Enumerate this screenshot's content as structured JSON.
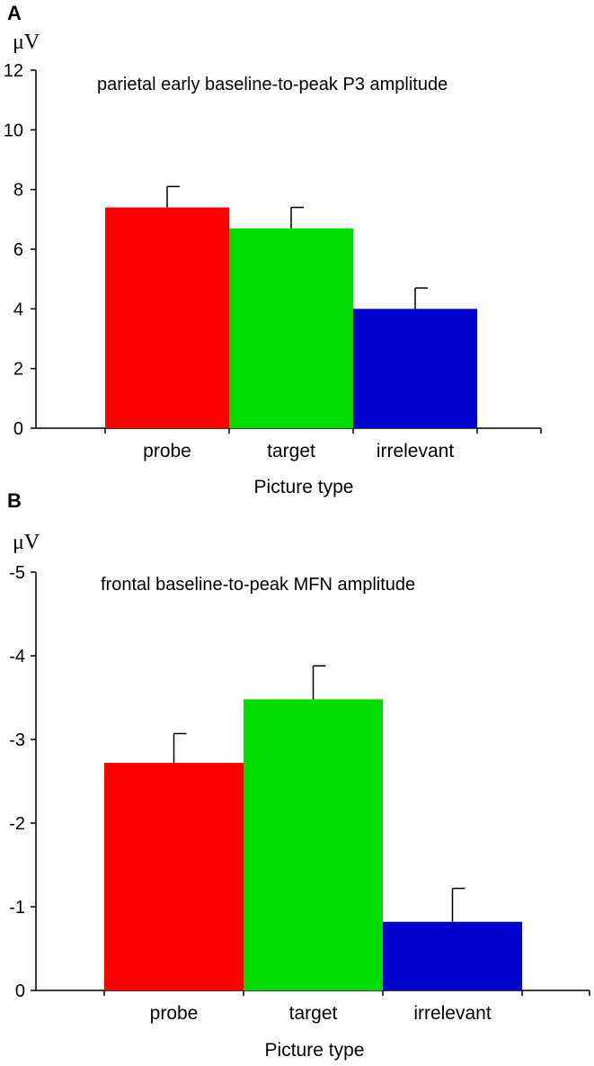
{
  "chart_data": [
    {
      "panel": "A",
      "type": "bar",
      "title": "parietal early baseline-to-peak P3 amplitude",
      "unit_label": "μV",
      "xlabel": "Picture type",
      "ylabel": "μV",
      "categories": [
        "probe",
        "target",
        "irrelevant"
      ],
      "values": [
        7.4,
        6.7,
        4.0
      ],
      "errors": [
        0.7,
        0.7,
        0.7
      ],
      "colors": [
        "#ff0000",
        "#00dd00",
        "#0000cc"
      ],
      "ylim": [
        0,
        12
      ],
      "yticks": [
        0,
        2,
        4,
        6,
        8,
        10,
        12
      ],
      "ytick_labels": [
        "0",
        "2",
        "4",
        "6",
        "8",
        "10",
        "12"
      ],
      "grid": false
    },
    {
      "panel": "B",
      "type": "bar",
      "title": "frontal baseline-to-peak MFN amplitude",
      "unit_label": "μV",
      "xlabel": "Picture type",
      "ylabel": "μV",
      "categories": [
        "probe",
        "target",
        "irrelevant"
      ],
      "values": [
        -2.72,
        -3.48,
        -0.82
      ],
      "errors": [
        0.35,
        0.4,
        0.4
      ],
      "colors": [
        "#ff0000",
        "#00dd00",
        "#0000cc"
      ],
      "ylim": [
        0,
        -5
      ],
      "yticks": [
        0,
        -1,
        -2,
        -3,
        -4,
        -5
      ],
      "ytick_labels": [
        "0",
        "-1",
        "-2",
        "-3",
        "-4",
        "-5"
      ],
      "grid": false
    }
  ]
}
